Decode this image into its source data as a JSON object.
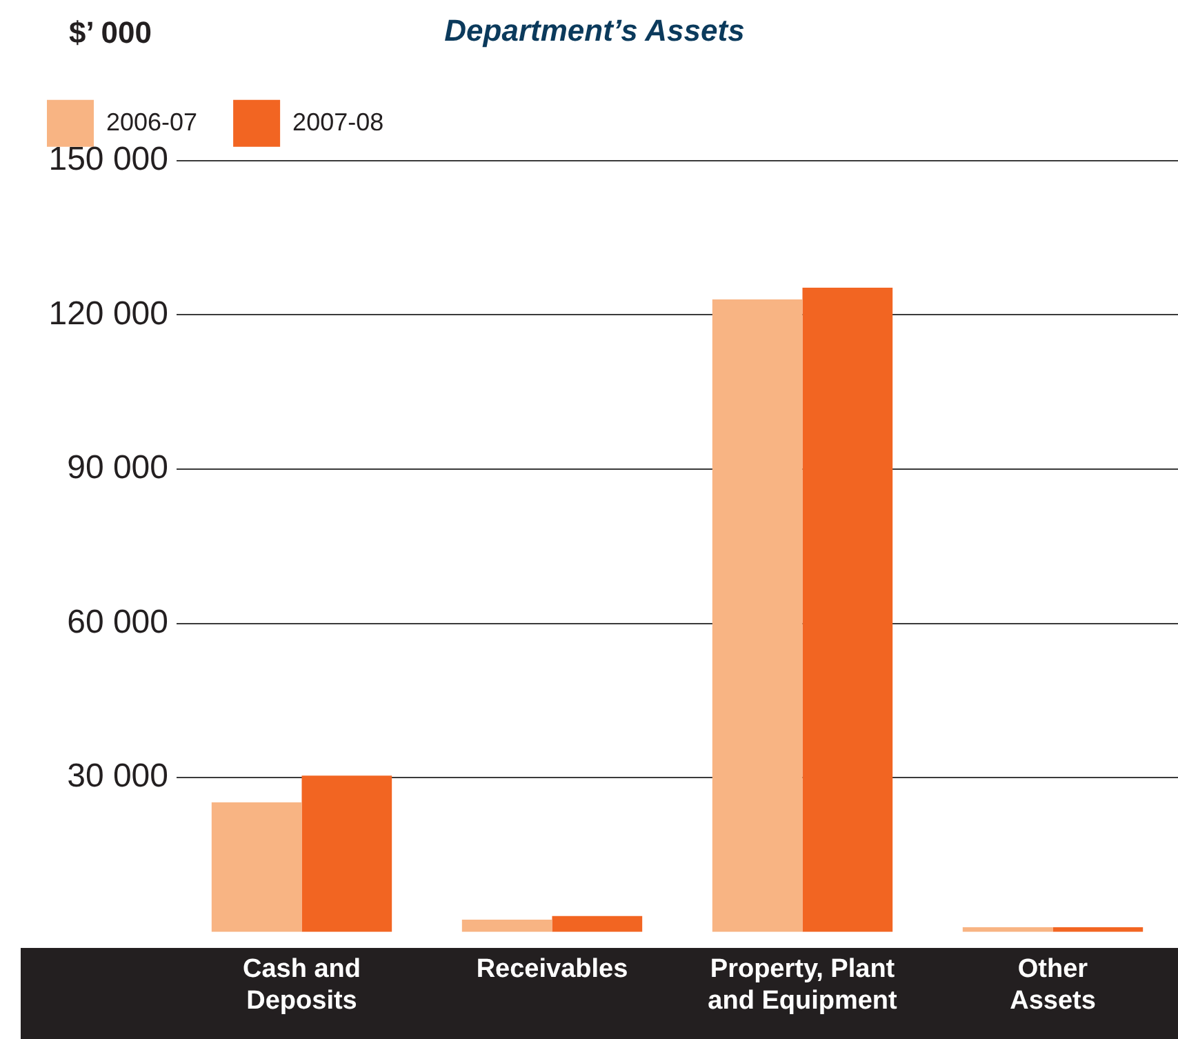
{
  "chart_data": {
    "type": "bar",
    "title": "Department’s Assets",
    "ylabel": "$’ 000",
    "categories": [
      "Cash and Deposits",
      "Receivables",
      "Property, Plant and Equipment",
      "Other Assets"
    ],
    "series": [
      {
        "name": "2006-07",
        "color": "#f8b483",
        "values": [
          25200,
          2400,
          123000,
          900
        ]
      },
      {
        "name": "2007-08",
        "color": "#f26522",
        "values": [
          30400,
          3100,
          125300,
          900
        ]
      }
    ],
    "ylim": [
      0,
      150000
    ],
    "yticks": [
      {
        "value": 30000,
        "label": "30 000"
      },
      {
        "value": 60000,
        "label": "60 000"
      },
      {
        "value": 90000,
        "label": "90 000"
      },
      {
        "value": 120000,
        "label": "120 000"
      },
      {
        "value": 150000,
        "label": "150 000"
      }
    ],
    "grid": "y",
    "legend": "top left"
  }
}
